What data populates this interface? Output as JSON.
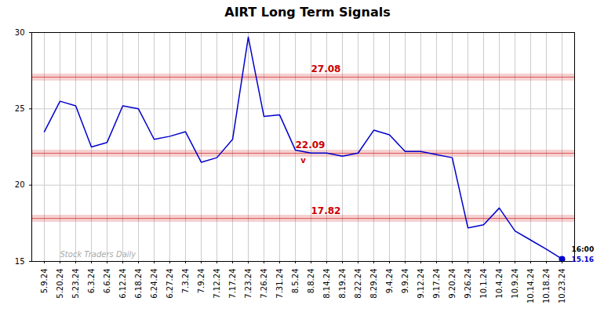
{
  "chart_data": {
    "type": "line",
    "title": "AIRT Long Term Signals",
    "categories": [
      "5.9.24",
      "5.20.24",
      "5.23.24",
      "6.3.24",
      "6.6.24",
      "6.12.24",
      "6.18.24",
      "6.24.24",
      "6.27.24",
      "7.3.24",
      "7.9.24",
      "7.12.24",
      "7.17.24",
      "7.23.24",
      "7.26.24",
      "7.31.24",
      "8.5.24",
      "8.8.24",
      "8.14.24",
      "8.19.24",
      "8.22.24",
      "8.29.24",
      "9.4.24",
      "9.9.24",
      "9.12.24",
      "9.17.24",
      "9.20.24",
      "9.26.24",
      "10.1.24",
      "10.4.24",
      "10.9.24",
      "10.14.24",
      "10.18.24",
      "10.23.24"
    ],
    "values": [
      23.5,
      25.5,
      25.2,
      22.5,
      22.8,
      25.2,
      25.0,
      23.0,
      23.2,
      23.5,
      21.5,
      21.8,
      23.0,
      29.7,
      24.5,
      24.6,
      22.3,
      22.1,
      22.1,
      21.9,
      22.1,
      23.6,
      23.3,
      22.2,
      22.2,
      22.0,
      21.8,
      17.2,
      17.4,
      18.5,
      17.0,
      16.4,
      15.8,
      15.16
    ],
    "color": "#0000cc",
    "ylim": [
      15,
      30
    ],
    "yticks": [
      15,
      20,
      25,
      30
    ],
    "grid": true,
    "hlines": [
      {
        "value": 27.08,
        "label": "27.08",
        "color": "#cc0000"
      },
      {
        "value": 22.09,
        "label": "22.09",
        "color": "#cc0000"
      },
      {
        "value": 17.82,
        "label": "17.82",
        "color": "#cc0000"
      }
    ],
    "annotations": [
      {
        "text": "16:00",
        "color": "#000000"
      },
      {
        "text": "15.16",
        "color": "#0000cc"
      },
      {
        "text": "v",
        "color": "#cc0000"
      },
      {
        "text": "Stock Traders Daily",
        "color": "#aaaaaa"
      }
    ]
  }
}
